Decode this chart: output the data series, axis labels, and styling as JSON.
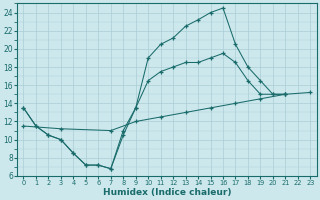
{
  "background_color": "#cce8ec",
  "grid_color": "#aacdd4",
  "line_color": "#1a6b6b",
  "xlabel": "Humidex (Indice chaleur)",
  "xlim": [
    -0.5,
    23.5
  ],
  "ylim": [
    6,
    25
  ],
  "yticks": [
    6,
    8,
    10,
    12,
    14,
    16,
    18,
    20,
    22,
    24
  ],
  "xticks": [
    0,
    1,
    2,
    3,
    4,
    5,
    6,
    7,
    8,
    9,
    10,
    11,
    12,
    13,
    14,
    15,
    16,
    17,
    18,
    19,
    20,
    21,
    22,
    23
  ],
  "line1_x": [
    0,
    1,
    2,
    3,
    4,
    5,
    6,
    7,
    8,
    9,
    10,
    11,
    12,
    13,
    14,
    15,
    16,
    17,
    18,
    19,
    20,
    21
  ],
  "line1_y": [
    13.5,
    11.5,
    10.5,
    10.0,
    8.5,
    7.2,
    7.2,
    6.8,
    10.5,
    13.5,
    19.0,
    20.5,
    21.2,
    22.5,
    23.2,
    24.0,
    24.5,
    20.5,
    18.0,
    16.5,
    15.0,
    15.0
  ],
  "line2_x": [
    0,
    1,
    2,
    3,
    4,
    5,
    6,
    7,
    8,
    9,
    10,
    11,
    12,
    13,
    14,
    15,
    16,
    17,
    18,
    19,
    20,
    21
  ],
  "line2_y": [
    13.5,
    11.5,
    10.5,
    10.0,
    8.5,
    7.2,
    7.2,
    6.8,
    11.0,
    13.5,
    16.5,
    17.5,
    18.0,
    18.5,
    18.5,
    19.0,
    19.5,
    18.5,
    16.5,
    15.0,
    15.0,
    15.0
  ],
  "line3_x": [
    0,
    3,
    7,
    9,
    11,
    13,
    15,
    17,
    19,
    21,
    23
  ],
  "line3_y": [
    11.5,
    11.2,
    11.0,
    12.0,
    12.5,
    13.0,
    13.5,
    14.0,
    14.5,
    15.0,
    15.2
  ]
}
